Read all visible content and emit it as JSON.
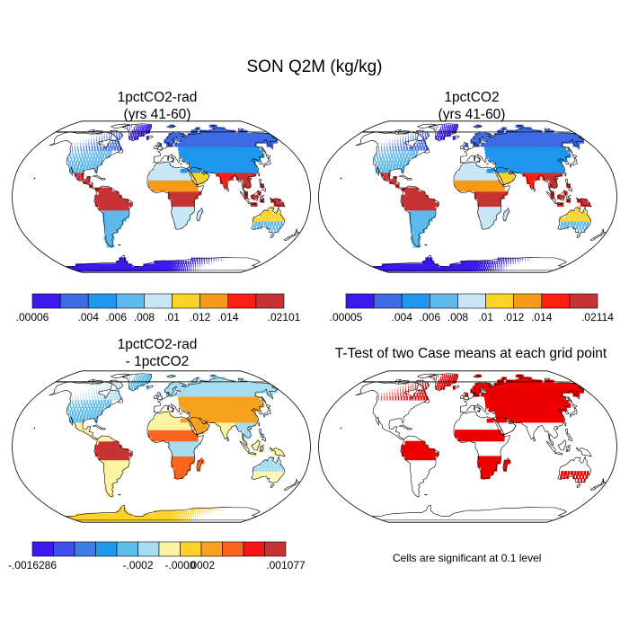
{
  "figure": {
    "title": "SON Q2M (kg/kg)",
    "note": "Cells are significant at 0.1 level"
  },
  "colors": {
    "outline": "#000000",
    "sig_red": "#ee0000",
    "seq": [
      "#3d19f0",
      "#3f6ae6",
      "#1e96ee",
      "#5fb9ea",
      "#c8e6f5",
      "#fbd327",
      "#f59a19",
      "#ff1e14",
      "#c83232"
    ],
    "div": [
      "#3d19f0",
      "#3f4ff0",
      "#3f7be6",
      "#1e9bee",
      "#5fbdea",
      "#a6dcf0",
      "#fdf3a0",
      "#fdd32a",
      "#f7a21e",
      "#fa641e",
      "#f61414",
      "#c83232"
    ]
  },
  "chart_data": [
    {
      "type": "heatmap",
      "title_lines": [
        "1pctCO2-rad",
        "(yrs 41-60)"
      ],
      "variable": "Q2M",
      "units": "kg/kg",
      "projection": "robinson",
      "colorbar_ticks": [
        ".00006",
        ".004",
        ".006",
        ".008",
        ".01",
        ".012",
        ".014",
        ".02101"
      ],
      "colorbar_bounds": [
        6e-05,
        0.002,
        0.004,
        0.006,
        0.008,
        0.01,
        0.012,
        0.014,
        0.016,
        0.02101
      ],
      "regions": [
        {
          "region": "Greenland",
          "value": 0.0012
        },
        {
          "region": "Antarctica",
          "value": 0.0002
        },
        {
          "region": "North America (boreal)",
          "value": 0.003
        },
        {
          "region": "United States",
          "value": 0.006
        },
        {
          "region": "Central America",
          "value": 0.016
        },
        {
          "region": "Amazon",
          "value": 0.017
        },
        {
          "region": "Southern South America",
          "value": 0.007
        },
        {
          "region": "Northern Eurasia",
          "value": 0.003
        },
        {
          "region": "Central Asia",
          "value": 0.005
        },
        {
          "region": "Sahara",
          "value": 0.009
        },
        {
          "region": "Sahel",
          "value": 0.013
        },
        {
          "region": "Central Africa",
          "value": 0.016
        },
        {
          "region": "Southern Africa",
          "value": 0.008
        },
        {
          "region": "Arabia",
          "value": 0.01
        },
        {
          "region": "India",
          "value": 0.015
        },
        {
          "region": "Southeast Asia",
          "value": 0.017
        },
        {
          "region": "Maritime Continent",
          "value": 0.018
        },
        {
          "region": "Australia (north)",
          "value": 0.011
        },
        {
          "region": "Australia (south)",
          "value": 0.007
        }
      ]
    },
    {
      "type": "heatmap",
      "title_lines": [
        "1pctCO2",
        "(yrs 41-60)"
      ],
      "variable": "Q2M",
      "units": "kg/kg",
      "projection": "robinson",
      "colorbar_ticks": [
        ".00005",
        ".004",
        ".006",
        ".008",
        ".01",
        ".012",
        ".014",
        ".02114"
      ],
      "colorbar_bounds": [
        5e-05,
        0.002,
        0.004,
        0.006,
        0.008,
        0.01,
        0.012,
        0.014,
        0.016,
        0.02114
      ],
      "regions": [
        {
          "region": "Greenland",
          "value": 0.0012
        },
        {
          "region": "Antarctica",
          "value": 0.0002
        },
        {
          "region": "North America (boreal)",
          "value": 0.003
        },
        {
          "region": "United States",
          "value": 0.006
        },
        {
          "region": "Central America",
          "value": 0.016
        },
        {
          "region": "Amazon",
          "value": 0.017
        },
        {
          "region": "Southern South America",
          "value": 0.007
        },
        {
          "region": "Northern Eurasia",
          "value": 0.003
        },
        {
          "region": "Central Asia",
          "value": 0.005
        },
        {
          "region": "Sahara",
          "value": 0.009
        },
        {
          "region": "Sahel",
          "value": 0.013
        },
        {
          "region": "Central Africa",
          "value": 0.016
        },
        {
          "region": "Southern Africa",
          "value": 0.008
        },
        {
          "region": "Arabia",
          "value": 0.01
        },
        {
          "region": "India",
          "value": 0.015
        },
        {
          "region": "Southeast Asia",
          "value": 0.017
        },
        {
          "region": "Maritime Continent",
          "value": 0.018
        },
        {
          "region": "Australia (north)",
          "value": 0.011
        },
        {
          "region": "Australia (south)",
          "value": 0.007
        }
      ]
    },
    {
      "type": "heatmap",
      "title_lines": [
        "1pctCO2-rad",
        "- 1pctCO2"
      ],
      "variable": "Q2M difference",
      "units": "kg/kg",
      "projection": "robinson",
      "colorbar_ticks": [
        "-.0016286",
        "-.0002",
        "-.0000",
        ".0002",
        ".001077"
      ],
      "colorbar_bounds": [
        -0.0016286,
        -0.0006,
        -0.0005,
        -0.0004,
        -0.0003,
        -0.0002,
        -0.0001,
        0.0,
        0.0001,
        0.0002,
        0.0003,
        0.0004,
        0.001077
      ],
      "regions": [
        {
          "region": "Greenland",
          "value": -0.0003
        },
        {
          "region": "Antarctica",
          "value": 5e-05
        },
        {
          "region": "North America (boreal)",
          "value": -0.0002
        },
        {
          "region": "United States",
          "value": -0.0003
        },
        {
          "region": "Central America",
          "value": -0.0001
        },
        {
          "region": "Amazon",
          "value": 0.0004
        },
        {
          "region": "Southern South America",
          "value": -0.0001
        },
        {
          "region": "Northern Eurasia",
          "value": -0.0002
        },
        {
          "region": "Central Asia",
          "value": 0.00015
        },
        {
          "region": "Sahara",
          "value": -5e-05
        },
        {
          "region": "Sahel",
          "value": 0.0002
        },
        {
          "region": "Central Africa",
          "value": -0.0002
        },
        {
          "region": "Southern Africa",
          "value": 0.0002
        },
        {
          "region": "Arabia",
          "value": 0.0001
        },
        {
          "region": "India",
          "value": -0.0001
        },
        {
          "region": "Southeast Asia",
          "value": -0.0002
        },
        {
          "region": "Maritime Continent",
          "value": -0.0001
        },
        {
          "region": "Australia (north)",
          "value": -0.0002
        },
        {
          "region": "Australia (south)",
          "value": -0.0001
        }
      ]
    },
    {
      "type": "heatmap",
      "title_lines": [
        "T-Test of two Case means at each grid point"
      ],
      "projection": "robinson",
      "note": "Cells are significant at 0.1 level",
      "significant_regions": [
        "Greenland",
        "North America (boreal)",
        "Northern Eurasia",
        "Central Asia",
        "Amazon",
        "Southern Africa",
        "Sahel",
        "Australia (south)"
      ]
    }
  ]
}
